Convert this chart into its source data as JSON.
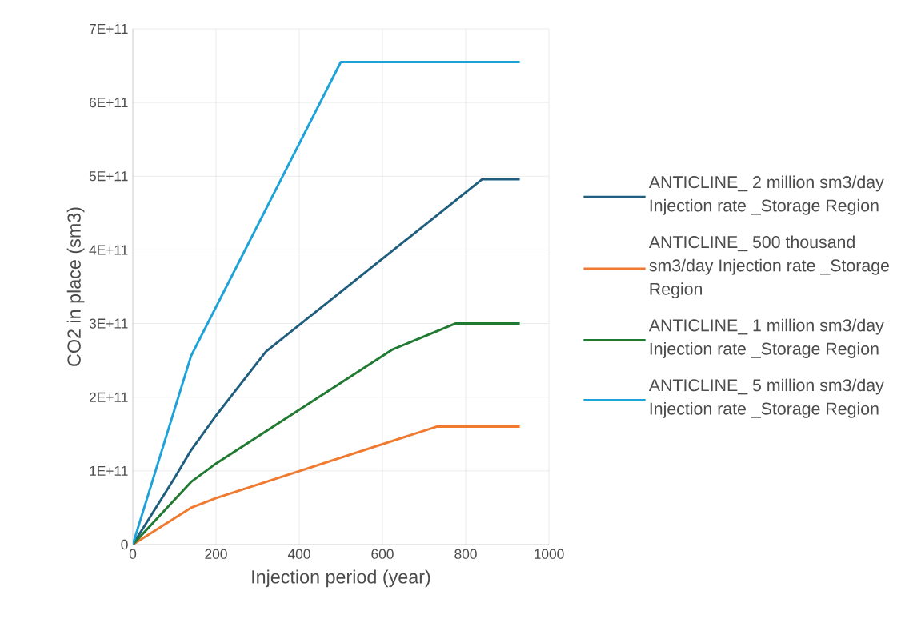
{
  "chart_data": {
    "type": "line",
    "xlabel": "Injection period (year)",
    "ylabel": "CO2 in place (sm3)",
    "xlim": [
      0,
      1000
    ],
    "xticks": [
      0,
      200,
      400,
      600,
      800,
      1000
    ],
    "ylim": [
      0,
      700000000000.0
    ],
    "yticks": [
      {
        "value": 0,
        "label": "0"
      },
      {
        "value": 100000000000.0,
        "label": "1E+11"
      },
      {
        "value": 200000000000.0,
        "label": "2E+11"
      },
      {
        "value": 300000000000.0,
        "label": "3E+11"
      },
      {
        "value": 400000000000.0,
        "label": "4E+11"
      },
      {
        "value": 500000000000.0,
        "label": "5E+11"
      },
      {
        "value": 600000000000.0,
        "label": "6E+11"
      },
      {
        "value": 700000000000.0,
        "label": "7E+11"
      }
    ],
    "grid": true,
    "legend": "right",
    "marker": "none",
    "line_style": "solid",
    "series": [
      {
        "name": "ANTICLINE_ 2 million sm3/day Injection rate _Storage Region",
        "color": "#205e7f",
        "x": [
          0,
          100,
          140,
          200,
          320,
          840,
          930
        ],
        "values": [
          0,
          90000000000.0,
          128000000000.0,
          175000000000.0,
          262000000000.0,
          496000000000.0,
          496000000000.0
        ]
      },
      {
        "name": "ANTICLINE_ 500 thousand sm3/day Injection rate _Storage Region",
        "color": "#f07a30",
        "x": [
          0,
          140,
          200,
          730,
          930
        ],
        "values": [
          0,
          50000000000.0,
          63000000000.0,
          160000000000.0,
          160000000000.0
        ]
      },
      {
        "name": "ANTICLINE_ 1 million sm3/day Injection rate _Storage Region",
        "color": "#217a32",
        "x": [
          0,
          140,
          200,
          625,
          775,
          930
        ],
        "values": [
          0,
          85000000000.0,
          110000000000.0,
          265000000000.0,
          300000000000.0,
          300000000000.0
        ]
      },
      {
        "name": "ANTICLINE_ 5 million sm3/day Injection rate _Storage Region",
        "color": "#1ea3d9",
        "x": [
          0,
          140,
          500,
          930
        ],
        "values": [
          0,
          256000000000.0,
          655000000000.0,
          655000000000.0
        ]
      }
    ]
  }
}
